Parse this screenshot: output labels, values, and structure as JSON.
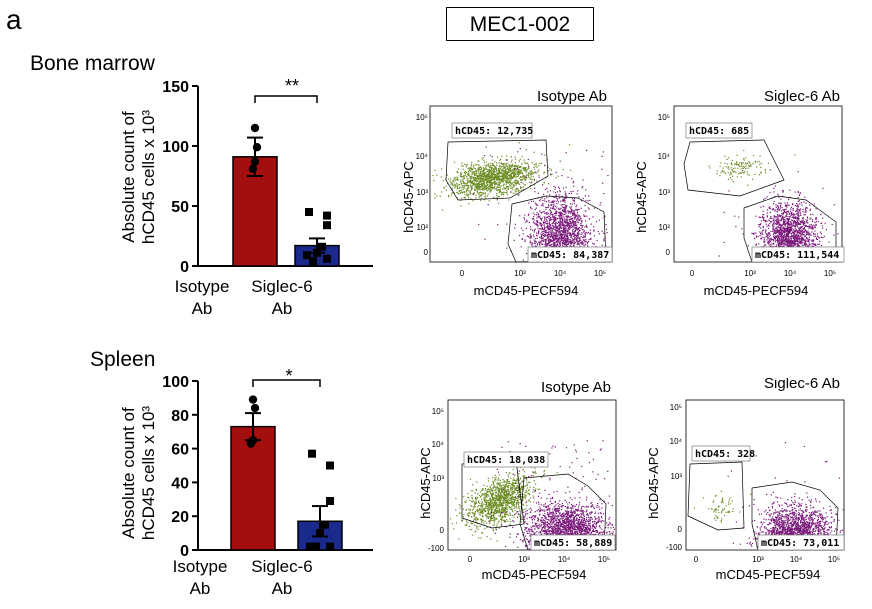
{
  "panel_letter": "a",
  "figure_title": "MEC1-002",
  "sections": [
    {
      "id": "bm",
      "title": "Bone marrow",
      "bar_chart": {
        "ylabel_line1": "Absolute count of",
        "ylabel_line2": "hCD45 cells x 10³",
        "significance": "**",
        "ylim": [
          0,
          150
        ],
        "yticks": [
          "0",
          "50",
          "100",
          "150"
        ],
        "categories": [
          {
            "line1": "Isotype",
            "line2": "Ab"
          },
          {
            "line1": "Siglec-6",
            "line2": "Ab"
          }
        ]
      },
      "flow": [
        {
          "title": "Isotype Ab",
          "hgate": "hCD45: 12,735",
          "mgate": "mCD45: 84,387"
        },
        {
          "title": "Siglec-6 Ab",
          "hgate": "hCD45: 685",
          "mgate": "mCD45: 111,544"
        }
      ]
    },
    {
      "id": "sp",
      "title": "Spleen",
      "bar_chart": {
        "ylabel_line1": "Absolute count of",
        "ylabel_line2": "hCD45 cells x 10³",
        "significance": "*",
        "ylim": [
          0,
          100
        ],
        "yticks": [
          "0",
          "20",
          "40",
          "60",
          "80",
          "100"
        ],
        "categories": [
          {
            "line1": "Isotype",
            "line2": "Ab"
          },
          {
            "line1": "Siglec-6",
            "line2": "Ab"
          }
        ]
      },
      "flow": [
        {
          "title": "Isotype Ab",
          "hgate": "hCD45: 18,038",
          "mgate": "mCD45: 58,889"
        },
        {
          "title": "Siglec-6 Ab",
          "hgate": "hCD45: 328",
          "mgate": "mCD45: 73,011"
        }
      ]
    }
  ],
  "flow_axes": {
    "xlabel": "mCD45-PECF594",
    "ylabel": "hCD45-APC",
    "bm_yticks": [
      "10⁵",
      "10⁴",
      "10³",
      "10²",
      "0"
    ],
    "bm_xticks": [
      "0",
      "10³",
      "10⁴",
      "10⁵"
    ],
    "sp_yticks": [
      "10⁵",
      "10⁴",
      "10³",
      "0",
      "-100"
    ],
    "sp_xticks": [
      "0",
      "10³",
      "10⁴",
      "10⁵"
    ]
  },
  "colors": {
    "isotype_bar": "#a30e0e",
    "siglec_bar": "#1a2a8c",
    "human_cells": "#6b8e23",
    "mouse_cells": "#7b1a7b"
  },
  "chart_data": [
    {
      "type": "bar",
      "title": "Bone marrow",
      "ylabel": "Absolute count of hCD45 cells x 10³",
      "ylim": [
        0,
        150
      ],
      "categories": [
        "Isotype Ab",
        "Siglec-6 Ab"
      ],
      "values": [
        91,
        17
      ],
      "errors": [
        16,
        6
      ],
      "points": [
        [
          115,
          99,
          87,
          81
        ],
        [
          45,
          42,
          34,
          16,
          11,
          9,
          6,
          4
        ]
      ]
    },
    {
      "type": "bar",
      "title": "Spleen",
      "ylabel": "Absolute count of hCD45 cells x 10³",
      "ylim": [
        0,
        100
      ],
      "categories": [
        "Isotype Ab",
        "Siglec-6 Ab"
      ],
      "values": [
        73,
        17
      ],
      "errors": [
        8,
        9
      ],
      "points": [
        [
          89,
          84,
          65,
          63
        ],
        [
          57,
          50,
          29,
          15,
          10,
          2,
          2,
          2
        ]
      ]
    }
  ]
}
